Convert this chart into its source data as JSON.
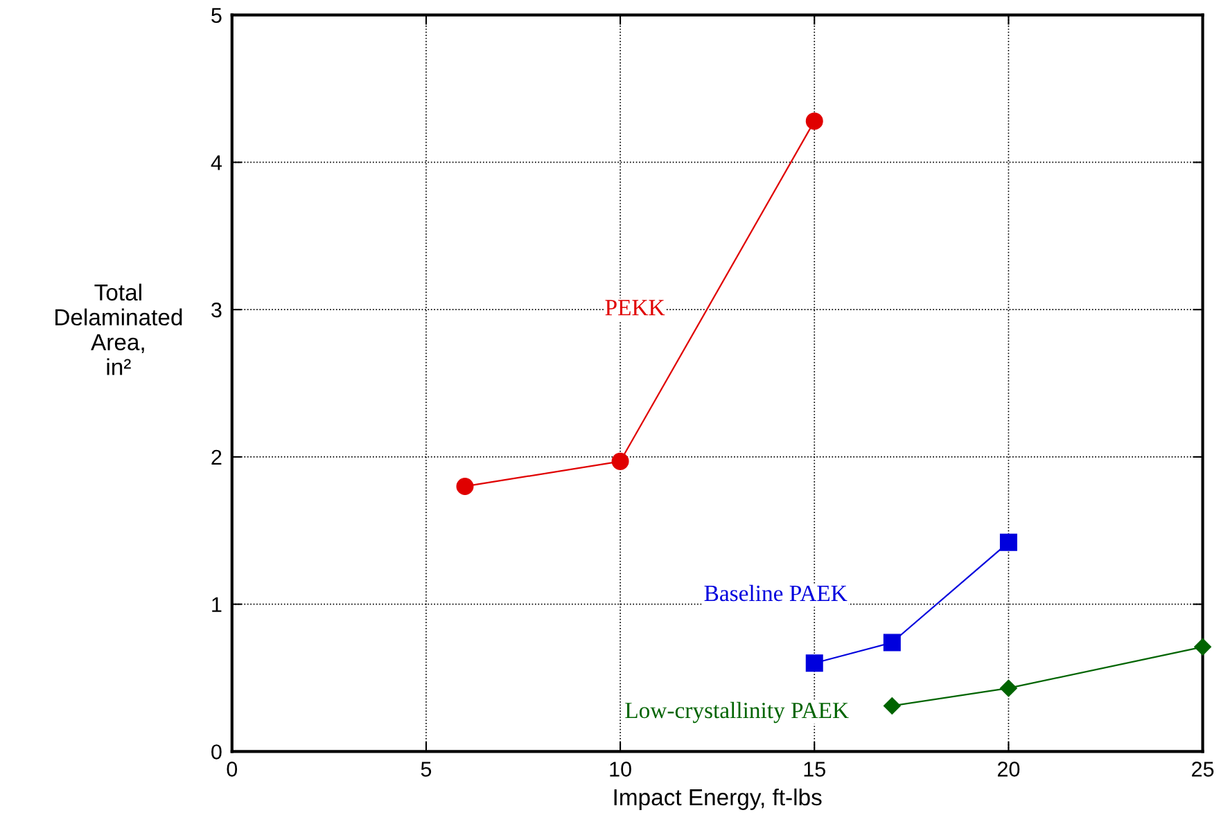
{
  "chart_data": {
    "type": "line",
    "xlabel": "Impact Energy, ft-lbs",
    "ylabel": "Total\nDelaminated\nArea,\nin²",
    "xlim": [
      0,
      25
    ],
    "xticks": [
      0,
      5,
      10,
      15,
      20,
      25
    ],
    "ylim": [
      0,
      5
    ],
    "yticks": [
      0,
      1,
      2,
      3,
      4,
      5
    ],
    "grid": true,
    "legend": false,
    "line_style": "solid",
    "series": [
      {
        "name": "PEKK",
        "color": "#e00000",
        "marker": "circle",
        "x": [
          6,
          10,
          15
        ],
        "values": [
          1.8,
          1.97,
          4.28
        ]
      },
      {
        "name": "Baseline PAEK",
        "color": "#0000dd",
        "marker": "square",
        "x": [
          15,
          17,
          20
        ],
        "values": [
          0.6,
          0.74,
          1.42
        ]
      },
      {
        "name": "Low-crystallinity PAEK",
        "color": "#006400",
        "marker": "diamond",
        "x": [
          17,
          20,
          25
        ],
        "values": [
          0.31,
          0.43,
          0.71
        ]
      }
    ]
  }
}
